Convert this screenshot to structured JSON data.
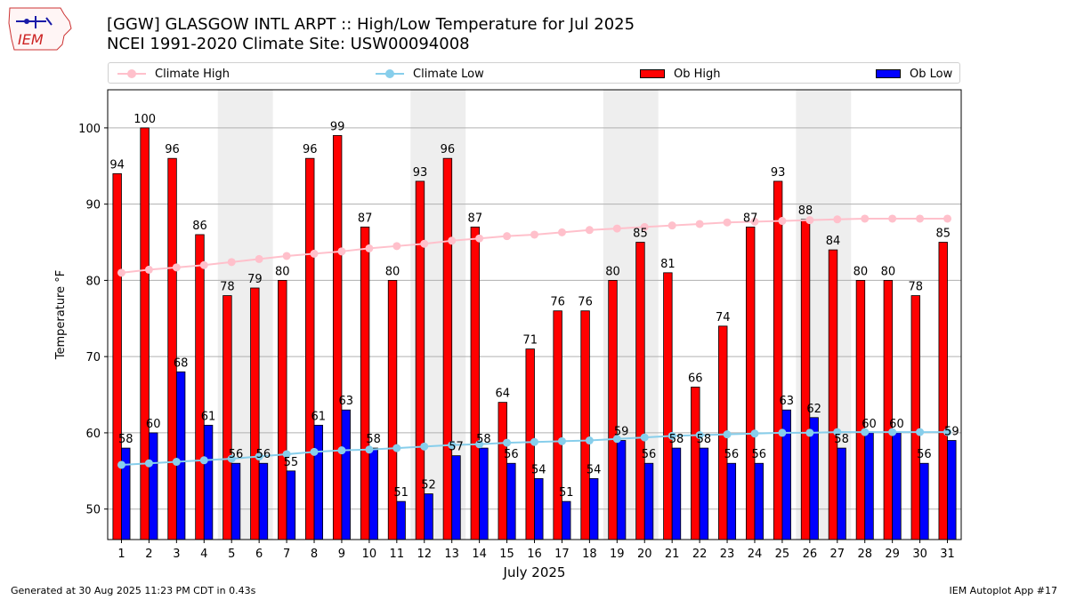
{
  "logo": {
    "text": "IEM"
  },
  "header": {
    "title": "[GGW] GLASGOW INTL ARPT :: High/Low Temperature for Jul 2025",
    "subtitle": "NCEI 1991-2020 Climate Site: USW00094008"
  },
  "legend": {
    "climate_high": "Climate High",
    "climate_low": "Climate Low",
    "ob_high": "Ob High",
    "ob_low": "Ob Low"
  },
  "colors": {
    "ob_high": "#ff0000",
    "ob_low": "#0000ff",
    "climate_high": "#ffc0cb",
    "climate_low": "#87ceeb",
    "weekend_shade": "#eeeeee"
  },
  "chart_data": {
    "type": "bar",
    "title": "[GGW] GLASGOW INTL ARPT :: High/Low Temperature for Jul 2025",
    "xlabel": "July 2025",
    "ylabel": "Temperature °F",
    "ylim": [
      46,
      105
    ],
    "yticks": [
      50,
      60,
      70,
      80,
      90,
      100
    ],
    "grid": true,
    "categories": [
      "1",
      "2",
      "3",
      "4",
      "5",
      "6",
      "7",
      "8",
      "9",
      "10",
      "11",
      "12",
      "13",
      "14",
      "15",
      "16",
      "17",
      "18",
      "19",
      "20",
      "21",
      "22",
      "23",
      "24",
      "25",
      "26",
      "27",
      "28",
      "29",
      "30",
      "31"
    ],
    "weekend_spans": [
      [
        5,
        6
      ],
      [
        12,
        13
      ],
      [
        19,
        20
      ],
      [
        26,
        27
      ]
    ],
    "series": [
      {
        "name": "Ob High",
        "kind": "bar",
        "values": [
          94,
          100,
          96,
          86,
          78,
          79,
          80,
          96,
          99,
          87,
          80,
          93,
          96,
          87,
          64,
          71,
          76,
          76,
          80,
          85,
          81,
          66,
          74,
          87,
          93,
          88,
          84,
          80,
          80,
          78,
          85
        ]
      },
      {
        "name": "Ob Low",
        "kind": "bar",
        "values": [
          58,
          60,
          68,
          61,
          56,
          56,
          55,
          61,
          63,
          58,
          51,
          52,
          57,
          58,
          56,
          54,
          51,
          54,
          59,
          56,
          58,
          58,
          56,
          56,
          63,
          62,
          58,
          60,
          60,
          56,
          59
        ]
      },
      {
        "name": "Climate High",
        "kind": "line",
        "values": [
          81.0,
          81.4,
          81.7,
          82.0,
          82.4,
          82.8,
          83.2,
          83.5,
          83.8,
          84.2,
          84.5,
          84.8,
          85.2,
          85.5,
          85.8,
          86.0,
          86.3,
          86.6,
          86.8,
          87.0,
          87.2,
          87.4,
          87.6,
          87.7,
          87.8,
          87.9,
          88.0,
          88.1,
          88.1,
          88.1,
          88.1
        ]
      },
      {
        "name": "Climate Low",
        "kind": "line",
        "values": [
          55.8,
          56.0,
          56.2,
          56.4,
          56.6,
          56.9,
          57.2,
          57.5,
          57.7,
          57.8,
          58.0,
          58.2,
          58.4,
          58.5,
          58.7,
          58.8,
          58.9,
          59.0,
          59.2,
          59.4,
          59.6,
          59.7,
          59.8,
          59.9,
          60.0,
          60.0,
          60.1,
          60.1,
          60.1,
          60.1,
          60.1
        ]
      }
    ]
  },
  "footer": {
    "generated": "Generated at 30 Aug 2025 11:23 PM CDT in 0.43s",
    "app": "IEM Autoplot App #17"
  }
}
